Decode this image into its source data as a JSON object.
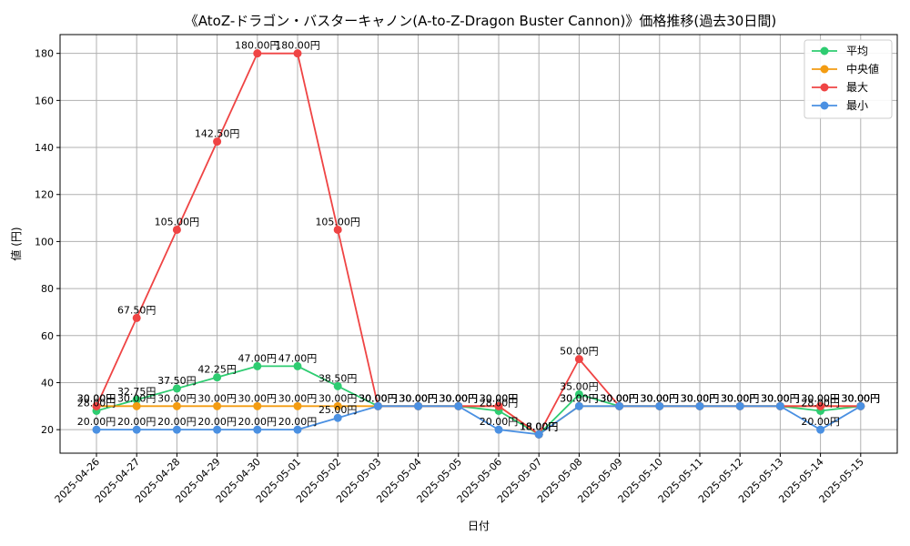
{
  "chart_data": {
    "type": "line",
    "title": "《AtoZ-ドラゴン・バスターキャノン(A-to-Z-Dragon Buster Cannon)》価格推移(過去30日間)",
    "xlabel": "日付",
    "ylabel": "値 (円)",
    "ylim": [
      10,
      188
    ],
    "yticks": [
      20,
      40,
      60,
      80,
      100,
      120,
      140,
      160,
      180
    ],
    "grid": true,
    "legend_position": "top-right",
    "label_suffix": "円",
    "categories": [
      "2025-04-26",
      "2025-04-27",
      "2025-04-28",
      "2025-04-29",
      "2025-04-30",
      "2025-05-01",
      "2025-05-02",
      "2025-05-03",
      "2025-05-04",
      "2025-05-05",
      "2025-05-06",
      "2025-05-07",
      "2025-05-08",
      "2025-05-09",
      "2025-05-10",
      "2025-05-11",
      "2025-05-12",
      "2025-05-13",
      "2025-05-14",
      "2025-05-15"
    ],
    "series": [
      {
        "name": "平均",
        "color": "#2ecc71",
        "values": [
          28,
          32.75,
          37.5,
          42.25,
          47,
          47,
          38.5,
          30,
          30,
          30,
          28,
          18,
          35,
          30,
          30,
          30,
          30,
          30,
          28,
          30
        ]
      },
      {
        "name": " 中央値",
        "color": "#f39c12",
        "values": [
          30,
          30,
          30,
          30,
          30,
          30,
          30,
          30,
          30,
          30,
          30,
          18,
          30,
          30,
          30,
          30,
          30,
          30,
          30,
          30
        ]
      },
      {
        "name": "最大",
        "color": "#ef4444",
        "values": [
          30,
          67.5,
          105,
          142.5,
          180,
          180,
          105,
          30,
          30,
          30,
          30,
          18,
          50,
          30,
          30,
          30,
          30,
          30,
          30,
          30
        ]
      },
      {
        "name": "最小",
        "color": "#4a90e2",
        "values": [
          20,
          20,
          20,
          20,
          20,
          20,
          25,
          30,
          30,
          30,
          20,
          18,
          30,
          30,
          30,
          30,
          30,
          30,
          20,
          30
        ]
      }
    ]
  }
}
